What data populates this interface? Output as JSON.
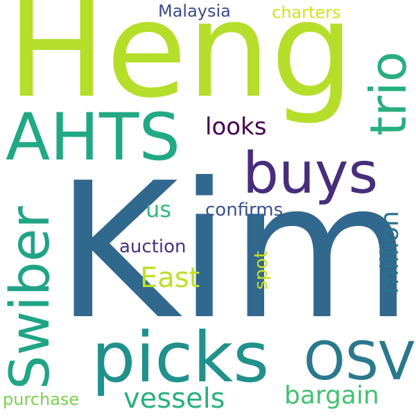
{
  "words": {
    "kim": {
      "text": "Kim",
      "color": "#31688e"
    },
    "heng": {
      "text": "Heng",
      "color": "#b5de2b"
    },
    "picks": {
      "text": "picks",
      "color": "#21918c"
    },
    "buys": {
      "text": "buys",
      "color": "#472d7b"
    },
    "ahts": {
      "text": "AHTS",
      "color": "#22a884"
    },
    "swiber": {
      "text": "Swiber",
      "color": "#20a486"
    },
    "trio": {
      "text": "trio",
      "color": "#29af7f"
    },
    "osv": {
      "text": "OSV",
      "color": "#2a788e"
    },
    "vessels": {
      "text": "vessels",
      "color": "#2ab07f"
    },
    "bargain": {
      "text": "bargain",
      "color": "#44bf70"
    },
    "looks": {
      "text": "looks",
      "color": "#440154"
    },
    "east": {
      "text": "East",
      "color": "#bddf26"
    },
    "million": {
      "text": "million",
      "color": "#2c728e"
    },
    "confirms": {
      "text": "confirms",
      "color": "#3b528b"
    },
    "auction": {
      "text": "auction",
      "color": "#46327e"
    },
    "us": {
      "text": "us",
      "color": "#35b779"
    },
    "spot": {
      "text": "spot",
      "color": "#c8e020"
    },
    "malaysia": {
      "text": "Malaysia",
      "color": "#3e4a89"
    },
    "charters": {
      "text": "charters",
      "color": "#d2e21b"
    },
    "purchase": {
      "text": "purchase",
      "color": "#7ad151"
    }
  }
}
